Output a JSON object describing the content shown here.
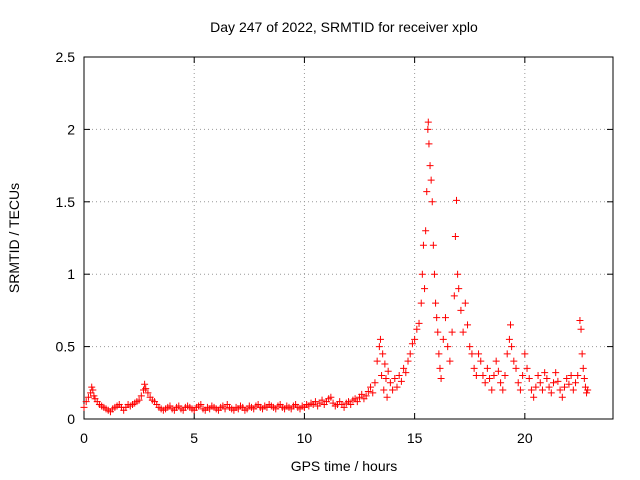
{
  "chart_data": {
    "type": "scatter",
    "title": "Day 247 of 2022, SRMTID for receiver xplo",
    "xlabel": "GPS time / hours",
    "ylabel": "SRMTID / TECUs",
    "xlim": [
      0,
      24
    ],
    "ylim": [
      0,
      2.5
    ],
    "xticks": [
      0,
      5,
      10,
      15,
      20
    ],
    "yticks": [
      0,
      0.5,
      1,
      1.5,
      2,
      2.5
    ],
    "xtick_labels": [
      "0",
      "5",
      "10",
      "15",
      "20"
    ],
    "ytick_labels": [
      "0",
      "0.5",
      "1",
      "1.5",
      "2",
      "2.5"
    ],
    "grid": true,
    "marker": "+",
    "series_color": "#ff0000",
    "series": [
      {
        "name": "SRMTID",
        "points": [
          [
            0.0,
            0.08
          ],
          [
            0.1,
            0.12
          ],
          [
            0.2,
            0.15
          ],
          [
            0.3,
            0.18
          ],
          [
            0.35,
            0.22
          ],
          [
            0.4,
            0.2
          ],
          [
            0.45,
            0.16
          ],
          [
            0.5,
            0.14
          ],
          [
            0.6,
            0.12
          ],
          [
            0.7,
            0.1
          ],
          [
            0.8,
            0.09
          ],
          [
            0.9,
            0.08
          ],
          [
            1.0,
            0.07
          ],
          [
            1.1,
            0.06
          ],
          [
            1.2,
            0.05
          ],
          [
            1.3,
            0.07
          ],
          [
            1.4,
            0.08
          ],
          [
            1.5,
            0.09
          ],
          [
            1.6,
            0.1
          ],
          [
            1.7,
            0.08
          ],
          [
            1.8,
            0.06
          ],
          [
            1.9,
            0.08
          ],
          [
            2.0,
            0.1
          ],
          [
            2.1,
            0.09
          ],
          [
            2.2,
            0.1
          ],
          [
            2.3,
            0.11
          ],
          [
            2.4,
            0.12
          ],
          [
            2.5,
            0.13
          ],
          [
            2.6,
            0.16
          ],
          [
            2.7,
            0.2
          ],
          [
            2.75,
            0.24
          ],
          [
            2.8,
            0.21
          ],
          [
            2.9,
            0.18
          ],
          [
            3.0,
            0.15
          ],
          [
            3.1,
            0.13
          ],
          [
            3.2,
            0.12
          ],
          [
            3.3,
            0.1
          ],
          [
            3.4,
            0.08
          ],
          [
            3.5,
            0.07
          ],
          [
            3.6,
            0.06
          ],
          [
            3.7,
            0.07
          ],
          [
            3.8,
            0.08
          ],
          [
            3.9,
            0.09
          ],
          [
            4.0,
            0.07
          ],
          [
            4.1,
            0.06
          ],
          [
            4.2,
            0.08
          ],
          [
            4.3,
            0.09
          ],
          [
            4.4,
            0.07
          ],
          [
            4.5,
            0.06
          ],
          [
            4.6,
            0.08
          ],
          [
            4.7,
            0.09
          ],
          [
            4.8,
            0.08
          ],
          [
            4.9,
            0.07
          ],
          [
            5.0,
            0.06
          ],
          [
            5.1,
            0.08
          ],
          [
            5.2,
            0.09
          ],
          [
            5.3,
            0.1
          ],
          [
            5.4,
            0.07
          ],
          [
            5.5,
            0.06
          ],
          [
            5.6,
            0.08
          ],
          [
            5.7,
            0.07
          ],
          [
            5.8,
            0.09
          ],
          [
            5.9,
            0.08
          ],
          [
            6.0,
            0.07
          ],
          [
            6.1,
            0.06
          ],
          [
            6.2,
            0.08
          ],
          [
            6.3,
            0.09
          ],
          [
            6.4,
            0.07
          ],
          [
            6.5,
            0.1
          ],
          [
            6.6,
            0.08
          ],
          [
            6.7,
            0.07
          ],
          [
            6.8,
            0.06
          ],
          [
            6.9,
            0.08
          ],
          [
            7.0,
            0.07
          ],
          [
            7.1,
            0.09
          ],
          [
            7.2,
            0.08
          ],
          [
            7.3,
            0.06
          ],
          [
            7.4,
            0.07
          ],
          [
            7.5,
            0.09
          ],
          [
            7.6,
            0.08
          ],
          [
            7.7,
            0.07
          ],
          [
            7.8,
            0.09
          ],
          [
            7.9,
            0.1
          ],
          [
            8.0,
            0.08
          ],
          [
            8.1,
            0.07
          ],
          [
            8.2,
            0.09
          ],
          [
            8.3,
            0.08
          ],
          [
            8.4,
            0.1
          ],
          [
            8.5,
            0.09
          ],
          [
            8.6,
            0.08
          ],
          [
            8.7,
            0.07
          ],
          [
            8.8,
            0.09
          ],
          [
            8.9,
            0.1
          ],
          [
            9.0,
            0.08
          ],
          [
            9.1,
            0.07
          ],
          [
            9.2,
            0.09
          ],
          [
            9.3,
            0.08
          ],
          [
            9.4,
            0.07
          ],
          [
            9.5,
            0.09
          ],
          [
            9.6,
            0.1
          ],
          [
            9.7,
            0.08
          ],
          [
            9.8,
            0.07
          ],
          [
            9.9,
            0.09
          ],
          [
            10.0,
            0.08
          ],
          [
            10.1,
            0.1
          ],
          [
            10.2,
            0.09
          ],
          [
            10.3,
            0.11
          ],
          [
            10.4,
            0.1
          ],
          [
            10.5,
            0.12
          ],
          [
            10.6,
            0.09
          ],
          [
            10.7,
            0.11
          ],
          [
            10.8,
            0.13
          ],
          [
            10.9,
            0.1
          ],
          [
            11.0,
            0.12
          ],
          [
            11.1,
            0.14
          ],
          [
            11.2,
            0.15
          ],
          [
            11.3,
            0.11
          ],
          [
            11.4,
            0.09
          ],
          [
            11.5,
            0.1
          ],
          [
            11.6,
            0.12
          ],
          [
            11.7,
            0.1
          ],
          [
            11.8,
            0.08
          ],
          [
            11.9,
            0.11
          ],
          [
            12.0,
            0.12
          ],
          [
            12.1,
            0.1
          ],
          [
            12.2,
            0.13
          ],
          [
            12.3,
            0.14
          ],
          [
            12.4,
            0.12
          ],
          [
            12.5,
            0.15
          ],
          [
            12.6,
            0.17
          ],
          [
            12.7,
            0.14
          ],
          [
            12.8,
            0.16
          ],
          [
            12.9,
            0.19
          ],
          [
            13.0,
            0.22
          ],
          [
            13.1,
            0.18
          ],
          [
            13.2,
            0.25
          ],
          [
            13.3,
            0.4
          ],
          [
            13.4,
            0.5
          ],
          [
            13.45,
            0.55
          ],
          [
            13.5,
            0.3
          ],
          [
            13.55,
            0.45
          ],
          [
            13.6,
            0.2
          ],
          [
            13.65,
            0.38
          ],
          [
            13.7,
            0.28
          ],
          [
            13.75,
            0.15
          ],
          [
            13.8,
            0.33
          ],
          [
            13.9,
            0.25
          ],
          [
            14.0,
            0.2
          ],
          [
            14.1,
            0.28
          ],
          [
            14.2,
            0.22
          ],
          [
            14.3,
            0.3
          ],
          [
            14.4,
            0.26
          ],
          [
            14.5,
            0.35
          ],
          [
            14.6,
            0.32
          ],
          [
            14.7,
            0.4
          ],
          [
            14.8,
            0.45
          ],
          [
            14.9,
            0.52
          ],
          [
            15.0,
            0.55
          ],
          [
            15.1,
            0.62
          ],
          [
            15.2,
            0.66
          ],
          [
            15.3,
            0.8
          ],
          [
            15.35,
            1.0
          ],
          [
            15.4,
            1.2
          ],
          [
            15.45,
            0.9
          ],
          [
            15.5,
            1.3
          ],
          [
            15.55,
            1.57
          ],
          [
            15.6,
            2.0
          ],
          [
            15.62,
            2.05
          ],
          [
            15.65,
            1.9
          ],
          [
            15.7,
            1.75
          ],
          [
            15.75,
            1.65
          ],
          [
            15.8,
            1.5
          ],
          [
            15.85,
            1.2
          ],
          [
            15.9,
            1.0
          ],
          [
            15.95,
            0.8
          ],
          [
            16.0,
            0.7
          ],
          [
            16.05,
            0.6
          ],
          [
            16.1,
            0.45
          ],
          [
            16.15,
            0.35
          ],
          [
            16.2,
            0.28
          ],
          [
            16.3,
            0.55
          ],
          [
            16.4,
            0.7
          ],
          [
            16.5,
            0.5
          ],
          [
            16.6,
            0.4
          ],
          [
            16.7,
            0.6
          ],
          [
            16.8,
            0.85
          ],
          [
            16.85,
            1.26
          ],
          [
            16.9,
            1.51
          ],
          [
            16.95,
            1.0
          ],
          [
            17.0,
            0.9
          ],
          [
            17.1,
            0.75
          ],
          [
            17.2,
            0.6
          ],
          [
            17.3,
            0.8
          ],
          [
            17.4,
            0.65
          ],
          [
            17.5,
            0.5
          ],
          [
            17.6,
            0.45
          ],
          [
            17.7,
            0.35
          ],
          [
            17.8,
            0.3
          ],
          [
            17.9,
            0.45
          ],
          [
            18.0,
            0.4
          ],
          [
            18.1,
            0.3
          ],
          [
            18.2,
            0.25
          ],
          [
            18.3,
            0.35
          ],
          [
            18.4,
            0.28
          ],
          [
            18.5,
            0.2
          ],
          [
            18.6,
            0.3
          ],
          [
            18.7,
            0.4
          ],
          [
            18.8,
            0.33
          ],
          [
            18.9,
            0.25
          ],
          [
            19.0,
            0.2
          ],
          [
            19.1,
            0.3
          ],
          [
            19.2,
            0.45
          ],
          [
            19.3,
            0.55
          ],
          [
            19.35,
            0.65
          ],
          [
            19.4,
            0.5
          ],
          [
            19.5,
            0.4
          ],
          [
            19.6,
            0.35
          ],
          [
            19.7,
            0.25
          ],
          [
            19.8,
            0.2
          ],
          [
            19.9,
            0.3
          ],
          [
            20.0,
            0.45
          ],
          [
            20.1,
            0.35
          ],
          [
            20.2,
            0.28
          ],
          [
            20.3,
            0.2
          ],
          [
            20.4,
            0.15
          ],
          [
            20.5,
            0.22
          ],
          [
            20.6,
            0.3
          ],
          [
            20.7,
            0.25
          ],
          [
            20.8,
            0.2
          ],
          [
            20.9,
            0.32
          ],
          [
            21.0,
            0.28
          ],
          [
            21.1,
            0.22
          ],
          [
            21.2,
            0.18
          ],
          [
            21.3,
            0.25
          ],
          [
            21.4,
            0.32
          ],
          [
            21.5,
            0.26
          ],
          [
            21.6,
            0.2
          ],
          [
            21.7,
            0.15
          ],
          [
            21.8,
            0.22
          ],
          [
            21.9,
            0.28
          ],
          [
            22.0,
            0.24
          ],
          [
            22.1,
            0.3
          ],
          [
            22.2,
            0.2
          ],
          [
            22.3,
            0.25
          ],
          [
            22.4,
            0.3
          ],
          [
            22.5,
            0.68
          ],
          [
            22.55,
            0.62
          ],
          [
            22.6,
            0.45
          ],
          [
            22.65,
            0.35
          ],
          [
            22.7,
            0.28
          ],
          [
            22.75,
            0.22
          ],
          [
            22.8,
            0.18
          ],
          [
            22.85,
            0.2
          ]
        ]
      }
    ]
  }
}
